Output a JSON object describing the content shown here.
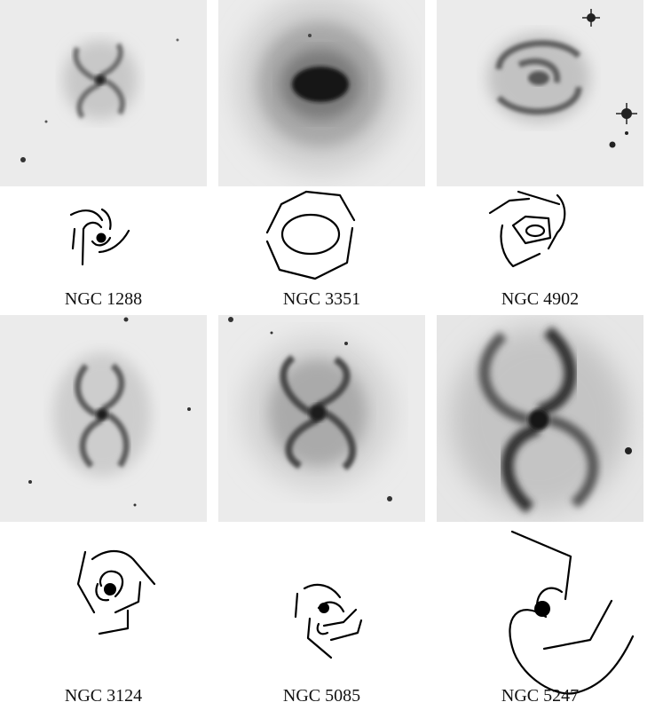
{
  "galaxies": [
    {
      "name": "NGC 1288"
    },
    {
      "name": "NGC 3351"
    },
    {
      "name": "NGC 4902"
    },
    {
      "name": "NGC 3124"
    },
    {
      "name": "NGC 5085"
    },
    {
      "name": "NGC 5247"
    }
  ]
}
